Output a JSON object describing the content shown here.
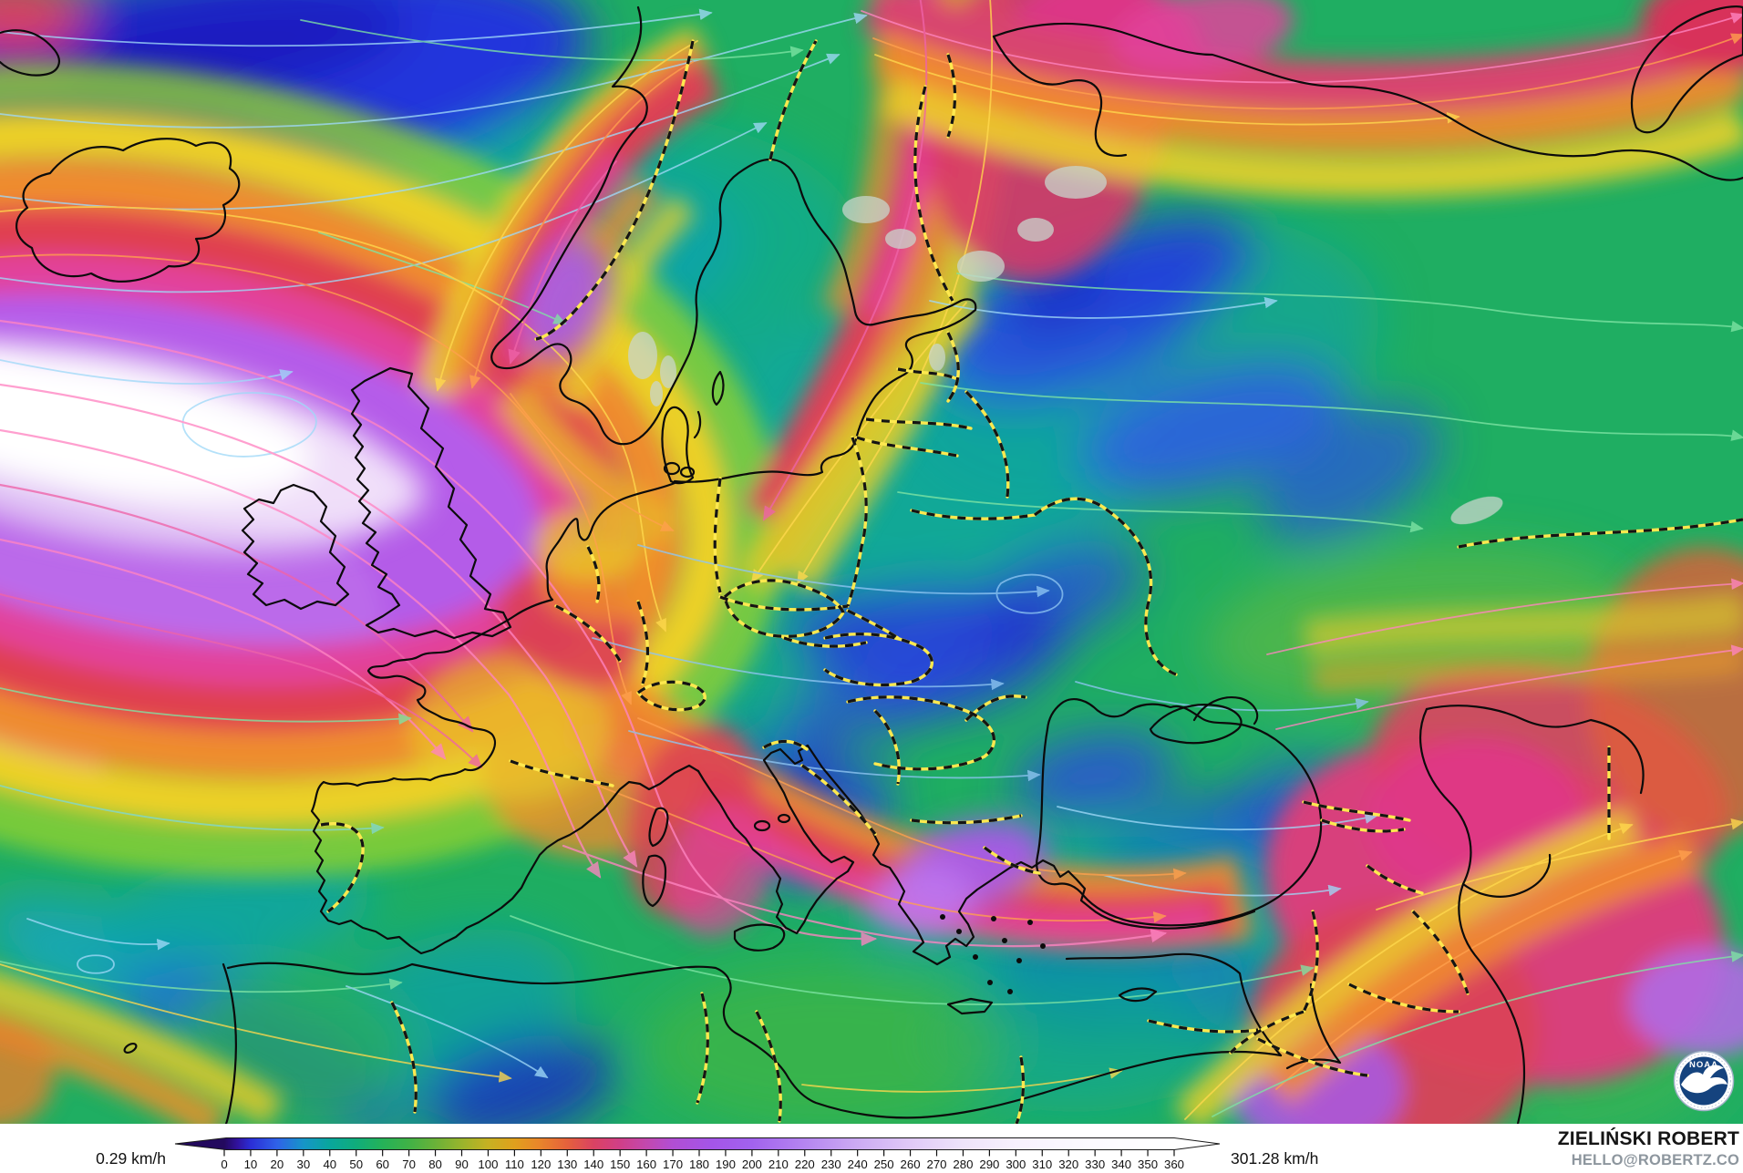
{
  "map": {
    "units": "km/h"
  },
  "legend": {
    "min_label": "0.29 km/h",
    "max_label": "301.28 km/h",
    "ticks": [
      0,
      10,
      20,
      30,
      40,
      50,
      60,
      70,
      80,
      90,
      100,
      110,
      120,
      130,
      140,
      150,
      160,
      170,
      180,
      190,
      200,
      210,
      220,
      230,
      240,
      250,
      260,
      270,
      280,
      290,
      300,
      310,
      320,
      330,
      340,
      350,
      360
    ],
    "colormap": [
      {
        "v": 0,
        "c": "#23095e"
      },
      {
        "v": 5,
        "c": "#31129e"
      },
      {
        "v": 10,
        "c": "#2b2ed6"
      },
      {
        "v": 20,
        "c": "#2f62e8"
      },
      {
        "v": 30,
        "c": "#1695c8"
      },
      {
        "v": 40,
        "c": "#09a69c"
      },
      {
        "v": 50,
        "c": "#10ad7b"
      },
      {
        "v": 60,
        "c": "#25b258"
      },
      {
        "v": 70,
        "c": "#40b246"
      },
      {
        "v": 80,
        "c": "#6ab238"
      },
      {
        "v": 90,
        "c": "#99b42c"
      },
      {
        "v": 100,
        "c": "#c6b122"
      },
      {
        "v": 110,
        "c": "#e0a01d"
      },
      {
        "v": 120,
        "c": "#e9832b"
      },
      {
        "v": 130,
        "c": "#e5613c"
      },
      {
        "v": 140,
        "c": "#da4263"
      },
      {
        "v": 150,
        "c": "#d03f88"
      },
      {
        "v": 160,
        "c": "#c348ae"
      },
      {
        "v": 170,
        "c": "#b14ed4"
      },
      {
        "v": 185,
        "c": "#a455e8"
      },
      {
        "v": 200,
        "c": "#a262ee"
      },
      {
        "v": 220,
        "c": "#b585f0"
      },
      {
        "v": 240,
        "c": "#ccabf3"
      },
      {
        "v": 260,
        "c": "#e0c9f7"
      },
      {
        "v": 280,
        "c": "#eee3fa"
      },
      {
        "v": 300,
        "c": "#f7f1fd"
      },
      {
        "v": 330,
        "c": "#fcfaff"
      },
      {
        "v": 360,
        "c": "#ffffff"
      }
    ]
  },
  "attribution": {
    "name": "ZIELIŃSKI ROBERT",
    "email": "HELLO@ROBERTZ.CO"
  },
  "logo": {
    "label": "NOAA"
  }
}
